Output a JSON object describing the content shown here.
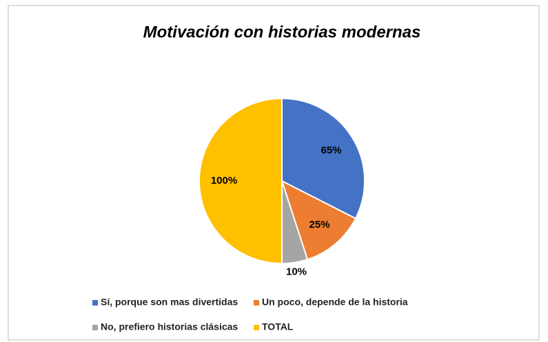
{
  "chart_data": {
    "type": "pie",
    "title": "Motivación con historias modernas",
    "categories": [
      "Sí, porque son mas divertidas",
      "Un poco, depende de la historia",
      "No, prefiero historias clásicas",
      "TOTAL"
    ],
    "values": [
      65,
      25,
      10,
      100
    ],
    "value_labels": [
      "65%",
      "25%",
      "10%",
      "100%"
    ],
    "colors": [
      "#4472c4",
      "#ed7d31",
      "#a5a5a5",
      "#ffc000"
    ],
    "legend": "bottom"
  }
}
